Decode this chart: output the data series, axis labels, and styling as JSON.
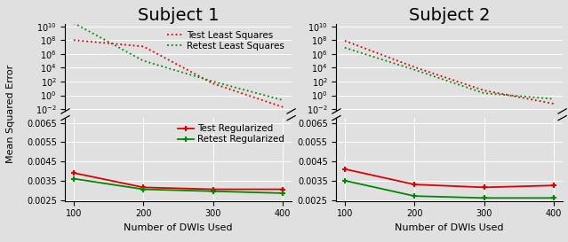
{
  "subjects": [
    "Subject 1",
    "Subject 2"
  ],
  "x": [
    100,
    200,
    300,
    400
  ],
  "s1_test_ls": [
    100000000.0,
    12000000.0,
    50.0,
    0.02
  ],
  "s1_retest_ls": [
    30000000000.0,
    100000.0,
    100.0,
    0.2
  ],
  "s1_test_reg": [
    0.0039,
    0.00315,
    0.00305,
    0.00305
  ],
  "s1_retest_reg": [
    0.0036,
    0.00305,
    0.00295,
    0.00285
  ],
  "s2_test_ls": [
    80000000.0,
    12000.0,
    5.0,
    0.06
  ],
  "s2_retest_ls": [
    8000000.0,
    5000.0,
    2.0,
    0.3
  ],
  "s2_test_reg": [
    0.0041,
    0.0033,
    0.00315,
    0.00325
  ],
  "s2_retest_reg": [
    0.0035,
    0.0027,
    0.0026,
    0.0026
  ],
  "log_ylim": [
    0.005,
    20000000000.0
  ],
  "lin_ylim": [
    0.00245,
    0.00675
  ],
  "lin_yticks": [
    0.0025,
    0.0035,
    0.0045,
    0.0055,
    0.0065
  ],
  "log_yticks": [
    0.01,
    1.0,
    100.0,
    10000.0,
    1000000.0,
    100000000.0,
    10000000000.0
  ],
  "xticks": [
    100,
    200,
    300,
    400
  ],
  "xlabel": "Number of DWIs Used",
  "ylabel": "Mean Squared Error",
  "color_test": "#dd0000",
  "color_retest": "#008800",
  "legend_ls_test": "Test Least Squares",
  "legend_ls_retest": "Retest Least Squares",
  "legend_reg_test": "Test Regularized",
  "legend_reg_retest": "Retest Regularized",
  "bg_color": "#e0e0e0",
  "grid_color": "white",
  "title_fontsize": 14,
  "label_fontsize": 8,
  "tick_fontsize": 7,
  "legend_fontsize": 7.5
}
